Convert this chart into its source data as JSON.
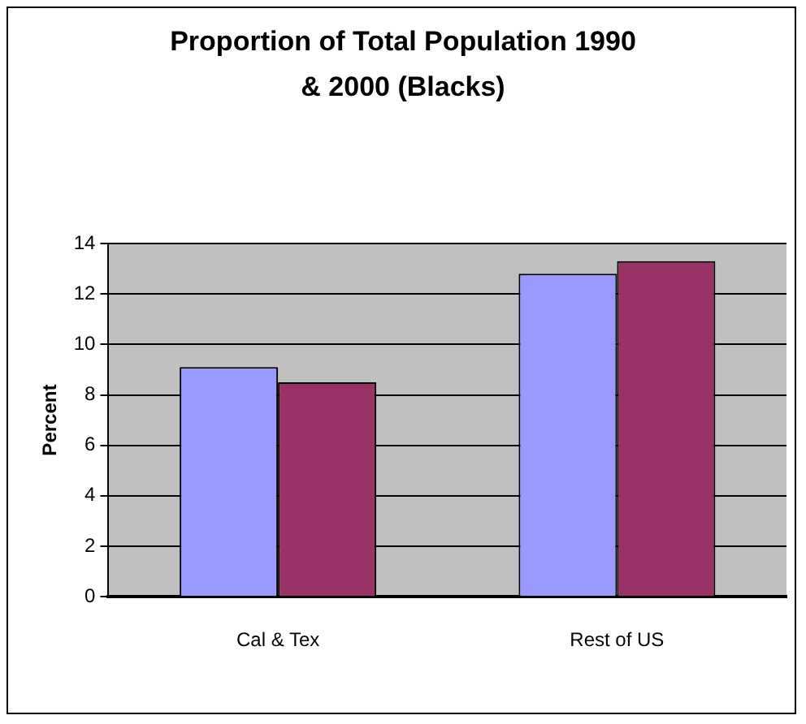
{
  "chart_data": {
    "type": "bar",
    "title": "Proportion of Total Population 1990 & 2000 (Blacks)",
    "ylabel": "Percent",
    "categories": [
      "Cal & Tex",
      "Rest of US"
    ],
    "series": [
      {
        "color": "#9999ff",
        "values": [
          9.1,
          12.8
        ]
      },
      {
        "color": "#993366",
        "values": [
          8.5,
          13.3
        ]
      }
    ],
    "ylim": [
      0,
      14
    ],
    "yticks": [
      0,
      2,
      4,
      6,
      8,
      10,
      12,
      14
    ],
    "grid": "y",
    "legend": false
  }
}
